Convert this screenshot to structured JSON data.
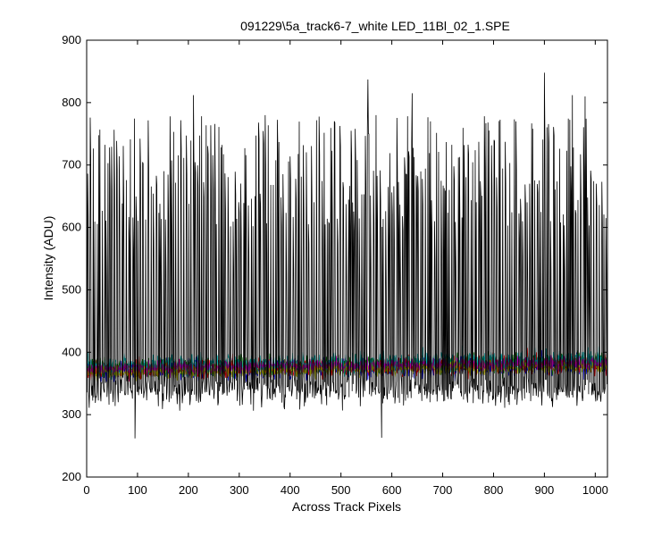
{
  "chart_data": {
    "type": "line",
    "title": "091229\\5a_track6-7_white LED_11Bl_02_1.SPE",
    "xlabel": "Across Track Pixels",
    "ylabel": "Intensity (ADU)",
    "xlim": [
      0,
      1024
    ],
    "ylim": [
      200,
      900
    ],
    "xticks": [
      0,
      100,
      200,
      300,
      400,
      500,
      600,
      700,
      800,
      900,
      1000
    ],
    "yticks": [
      200,
      300,
      400,
      500,
      600,
      700,
      800,
      900
    ],
    "grid": false,
    "legend": "none",
    "series": [
      {
        "color": "#000000",
        "role": "high-amplitude trace",
        "approx_range": [
          262,
          848
        ],
        "notes": "rapid oscillation mostly between ~300 and ~800 with occasional peaks near 848 (x≈900) and dips near 262 (x≈95) and 263 (x≈580)"
      },
      {
        "color": "#0000ff",
        "role": "baseline trace",
        "approx_range": [
          330,
          410
        ]
      },
      {
        "color": "#008000",
        "role": "baseline trace",
        "approx_range": [
          330,
          410
        ]
      },
      {
        "color": "#ff0000",
        "role": "baseline trace",
        "approx_range": [
          330,
          410
        ]
      },
      {
        "color": "#00bfbf",
        "role": "baseline trace",
        "approx_range": [
          320,
          410
        ]
      },
      {
        "color": "#bfbf00",
        "role": "baseline trace",
        "approx_range": [
          340,
          400
        ]
      },
      {
        "color": "#bf00bf",
        "role": "baseline trace",
        "approx_range": [
          340,
          400
        ]
      }
    ]
  }
}
